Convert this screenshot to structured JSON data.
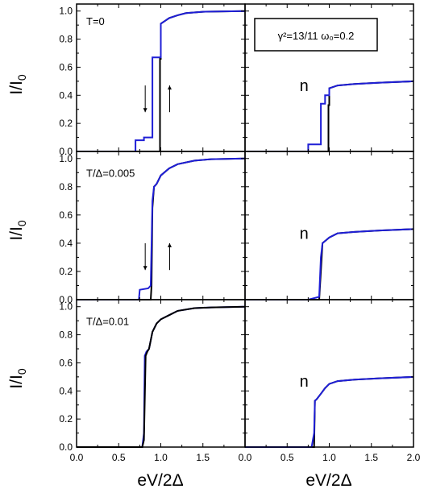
{
  "chart_data": {
    "type": "line",
    "xlabel": "eV/2Δ",
    "ylabel": "I/I",
    "ylabel_sub": "0",
    "xlim": [
      0.0,
      2.0
    ],
    "ylim": [
      0.0,
      1.05
    ],
    "x_ticks": [
      0.0,
      0.5,
      1.0,
      1.5,
      2.0
    ],
    "x_tick_labels_left": [
      "0.0",
      "0.5",
      "1.0",
      "1.5",
      "0.0"
    ],
    "x_tick_labels_right": [
      "",
      "0.5",
      "1.0",
      "1.5",
      "2.0"
    ],
    "y_ticks": [
      0.0,
      0.2,
      0.4,
      0.6,
      0.8,
      1.0
    ],
    "y_tick_labels": [
      "0.0",
      "0.2",
      "0.4",
      "0.6",
      "0.8",
      "1.0"
    ],
    "legend_box": {
      "text": "γ²=13/11  ω₀=0.2"
    },
    "colors": {
      "black": "#000000",
      "blue": "#1f1fd6"
    },
    "panels": [
      {
        "row": 0,
        "col": 0,
        "annotation": "T=0",
        "label_n": "",
        "arrows": true,
        "series": [
          {
            "color": "black",
            "x": [
              0,
              0.99,
              0.99,
              1.0,
              1.0,
              1.05,
              1.1,
              1.2,
              1.3,
              1.5,
              2.0
            ],
            "y": [
              0,
              0,
              0.66,
              0.66,
              0.91,
              0.93,
              0.95,
              0.97,
              0.985,
              0.995,
              1.0
            ]
          },
          {
            "color": "blue",
            "x": [
              0,
              0.7,
              0.7,
              0.8,
              0.8,
              0.9,
              0.9,
              1.0,
              1.0,
              1.05,
              1.1,
              1.2,
              1.3,
              1.5,
              2.0
            ],
            "y": [
              0,
              0,
              0.08,
              0.08,
              0.1,
              0.1,
              0.67,
              0.67,
              0.91,
              0.93,
              0.95,
              0.97,
              0.985,
              0.995,
              1.0
            ]
          }
        ]
      },
      {
        "row": 0,
        "col": 1,
        "annotation": "",
        "label_n": "n",
        "arrows": false,
        "series": [
          {
            "color": "black",
            "x": [
              0,
              0.99,
              0.99,
              1.0,
              1.0,
              1.1,
              1.3,
              1.6,
              2.0
            ],
            "y": [
              0,
              0,
              0.33,
              0.33,
              0.45,
              0.47,
              0.48,
              0.49,
              0.5
            ]
          },
          {
            "color": "blue",
            "x": [
              0,
              0.75,
              0.75,
              0.9,
              0.9,
              0.95,
              0.95,
              1.0,
              1.0,
              1.1,
              1.3,
              1.6,
              2.0
            ],
            "y": [
              0,
              0,
              0.05,
              0.05,
              0.34,
              0.34,
              0.4,
              0.4,
              0.45,
              0.47,
              0.48,
              0.49,
              0.5
            ]
          }
        ]
      },
      {
        "row": 1,
        "col": 0,
        "annotation": "T/Δ=0.005",
        "label_n": "",
        "arrows": true,
        "series": [
          {
            "color": "black",
            "x": [
              0,
              0.88,
              0.89,
              0.9,
              0.92,
              0.95,
              1.0,
              1.1,
              1.2,
              1.4,
              1.6,
              2.0
            ],
            "y": [
              0,
              0,
              0.1,
              0.65,
              0.8,
              0.82,
              0.88,
              0.93,
              0.96,
              0.985,
              0.995,
              1.0
            ]
          },
          {
            "color": "blue",
            "x": [
              0,
              0.74,
              0.75,
              0.85,
              0.88,
              0.9,
              0.92,
              0.95,
              1.0,
              1.1,
              1.2,
              1.4,
              1.6,
              2.0
            ],
            "y": [
              0,
              0,
              0.07,
              0.08,
              0.1,
              0.7,
              0.8,
              0.82,
              0.88,
              0.93,
              0.96,
              0.985,
              0.995,
              1.0
            ]
          }
        ]
      },
      {
        "row": 1,
        "col": 1,
        "annotation": "",
        "label_n": "n",
        "arrows": false,
        "series": [
          {
            "color": "black",
            "x": [
              0,
              0.88,
              0.9,
              0.92,
              0.96,
              1.0,
              1.1,
              1.3,
              1.6,
              2.0
            ],
            "y": [
              0,
              0,
              0.2,
              0.4,
              0.42,
              0.44,
              0.47,
              0.48,
              0.49,
              0.5
            ]
          },
          {
            "color": "blue",
            "x": [
              0,
              0.75,
              0.88,
              0.9,
              0.92,
              0.96,
              1.0,
              1.1,
              1.3,
              1.6,
              2.0
            ],
            "y": [
              0,
              0,
              0.02,
              0.3,
              0.4,
              0.42,
              0.44,
              0.47,
              0.48,
              0.49,
              0.5
            ]
          }
        ]
      },
      {
        "row": 2,
        "col": 0,
        "annotation": "T/Δ=0.01",
        "label_n": "",
        "arrows": false,
        "series": [
          {
            "color": "blue",
            "x": [
              0,
              0.78,
              0.8,
              0.81,
              0.83,
              0.86,
              0.9,
              0.95,
              1.0,
              1.1,
              1.2,
              1.4,
              1.6,
              2.0
            ],
            "y": [
              0,
              0,
              0.1,
              0.65,
              0.68,
              0.7,
              0.82,
              0.88,
              0.91,
              0.94,
              0.97,
              0.99,
              0.995,
              1.0
            ]
          },
          {
            "color": "black",
            "x": [
              0,
              0.78,
              0.8,
              0.82,
              0.84,
              0.86,
              0.9,
              0.95,
              1.0,
              1.1,
              1.2,
              1.4,
              1.6,
              2.0
            ],
            "y": [
              0,
              0,
              0.05,
              0.65,
              0.68,
              0.7,
              0.82,
              0.88,
              0.91,
              0.94,
              0.97,
              0.99,
              0.995,
              1.0
            ]
          }
        ]
      },
      {
        "row": 2,
        "col": 1,
        "annotation": "",
        "label_n": "n",
        "arrows": false,
        "series": [
          {
            "color": "black",
            "x": [
              0,
              0.82,
              0.83,
              0.85,
              0.9,
              0.95,
              1.0,
              1.1,
              1.3,
              1.6,
              2.0
            ],
            "y": [
              0,
              0,
              0.33,
              0.34,
              0.38,
              0.42,
              0.45,
              0.47,
              0.48,
              0.49,
              0.5
            ]
          },
          {
            "color": "blue",
            "x": [
              0,
              0.79,
              0.82,
              0.83,
              0.85,
              0.9,
              0.95,
              1.0,
              1.1,
              1.3,
              1.6,
              2.0
            ],
            "y": [
              0,
              0,
              0.1,
              0.33,
              0.34,
              0.38,
              0.42,
              0.45,
              0.47,
              0.48,
              0.49,
              0.5
            ]
          }
        ]
      }
    ]
  }
}
